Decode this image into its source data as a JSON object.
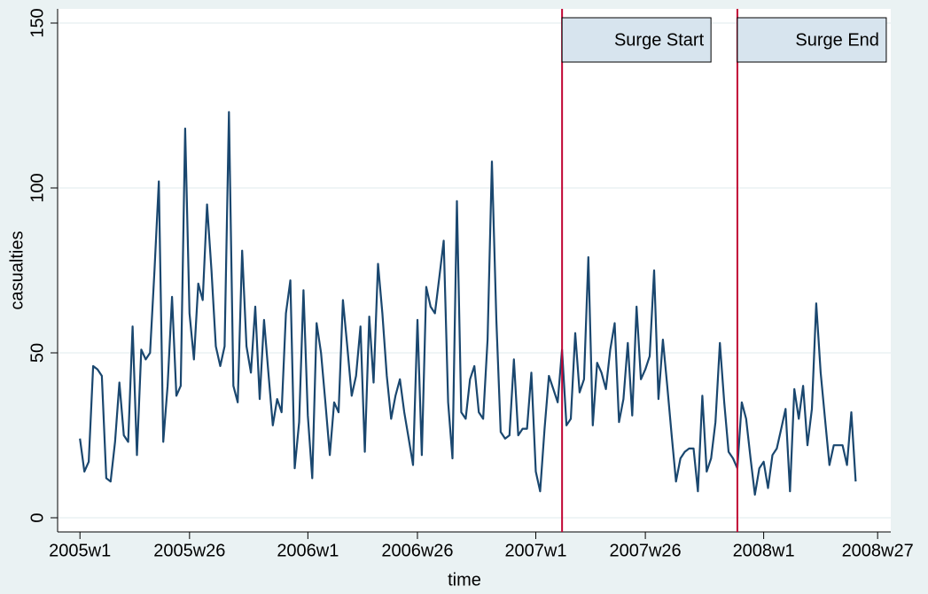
{
  "chart_data": {
    "type": "line",
    "x_label": "time",
    "y_label": "casualties",
    "x": [
      2340,
      2341,
      2342,
      2343,
      2344,
      2345,
      2346,
      2347,
      2348,
      2349,
      2350,
      2351,
      2352,
      2353,
      2354,
      2355,
      2356,
      2357,
      2358,
      2359,
      2360,
      2361,
      2362,
      2363,
      2364,
      2365,
      2366,
      2367,
      2368,
      2369,
      2370,
      2371,
      2372,
      2373,
      2374,
      2375,
      2376,
      2377,
      2378,
      2379,
      2380,
      2381,
      2382,
      2383,
      2384,
      2385,
      2386,
      2387,
      2388,
      2389,
      2390,
      2391,
      2392,
      2393,
      2394,
      2395,
      2396,
      2397,
      2398,
      2399,
      2400,
      2401,
      2402,
      2403,
      2404,
      2405,
      2406,
      2407,
      2408,
      2409,
      2410,
      2411,
      2412,
      2413,
      2414,
      2415,
      2416,
      2417,
      2418,
      2419,
      2420,
      2421,
      2422,
      2423,
      2424,
      2425,
      2426,
      2427,
      2428,
      2429,
      2430,
      2431,
      2432,
      2433,
      2434,
      2435,
      2436,
      2437,
      2438,
      2439,
      2440,
      2441,
      2442,
      2443,
      2444,
      2445,
      2446,
      2447,
      2448,
      2449,
      2450,
      2451,
      2452,
      2453,
      2454,
      2455,
      2456,
      2457,
      2458,
      2459,
      2460,
      2461,
      2462,
      2463,
      2464,
      2465,
      2466,
      2467,
      2468,
      2469,
      2470,
      2471,
      2472,
      2473,
      2474,
      2475,
      2476,
      2477,
      2478,
      2479,
      2480,
      2481,
      2482,
      2483,
      2484,
      2485,
      2486,
      2487,
      2488,
      2489,
      2490,
      2491,
      2492,
      2493,
      2494,
      2495,
      2496,
      2497,
      2498,
      2499,
      2500,
      2501,
      2502,
      2503,
      2504,
      2505,
      2506,
      2507,
      2508,
      2509,
      2510,
      2511,
      2512,
      2513,
      2514,
      2515,
      2516,
      2517
    ],
    "series": [
      {
        "color": "#1a476f",
        "values": [
          24,
          14,
          17,
          46,
          45,
          43,
          12,
          11,
          23,
          41,
          25,
          23,
          58,
          19,
          51,
          48,
          50,
          75,
          102,
          23,
          40,
          67,
          37,
          40,
          118,
          62,
          48,
          71,
          66,
          95,
          75,
          52,
          46,
          52,
          123,
          40,
          35,
          81,
          52,
          44,
          64,
          36,
          60,
          44,
          28,
          36,
          32,
          62,
          72,
          15,
          29,
          69,
          31,
          12,
          59,
          50,
          35,
          19,
          35,
          32,
          66,
          52,
          37,
          43,
          58,
          20,
          61,
          41,
          77,
          62,
          43,
          30,
          37,
          42,
          32,
          24,
          16,
          60,
          19,
          70,
          64,
          62,
          73,
          84,
          35,
          18,
          96,
          32,
          30,
          42,
          46,
          32,
          30,
          54,
          108,
          60,
          26,
          24,
          25,
          48,
          25,
          27,
          27,
          44,
          14,
          8,
          27,
          43,
          39,
          35,
          51,
          28,
          30,
          56,
          38,
          42,
          79,
          28,
          47,
          44,
          39,
          51,
          59,
          29,
          36,
          53,
          31,
          64,
          42,
          45,
          49,
          75,
          36,
          54,
          40,
          25,
          11,
          18,
          20,
          21,
          21,
          8,
          37,
          14,
          18,
          29,
          53,
          35,
          20,
          18,
          15,
          35,
          30,
          18,
          7,
          15,
          17,
          9,
          19,
          21,
          27,
          33,
          8,
          39,
          30,
          40,
          22,
          33,
          65,
          44,
          30,
          16,
          22,
          22,
          22,
          16,
          32,
          11
        ]
      }
    ],
    "annotations": [
      {
        "x": 2450,
        "label": "Surge Start",
        "color": "#c10534"
      },
      {
        "x": 2490,
        "label": "Surge End",
        "color": "#c10534"
      }
    ],
    "xlim": [
      2334.9,
      2525
    ],
    "xticks": [
      {
        "value": 2340,
        "label": "2005w1"
      },
      {
        "value": 2365,
        "label": "2005w26"
      },
      {
        "value": 2392,
        "label": "2006w1"
      },
      {
        "value": 2417,
        "label": "2006w26"
      },
      {
        "value": 2444,
        "label": "2007w1"
      },
      {
        "value": 2469,
        "label": "2007w26"
      },
      {
        "value": 2496,
        "label": "2008w1"
      },
      {
        "value": 2522,
        "label": "2008w27"
      }
    ],
    "ylim": [
      -4.3,
      154.3
    ],
    "yticks": [
      0,
      50,
      100,
      150
    ],
    "grid": true
  }
}
